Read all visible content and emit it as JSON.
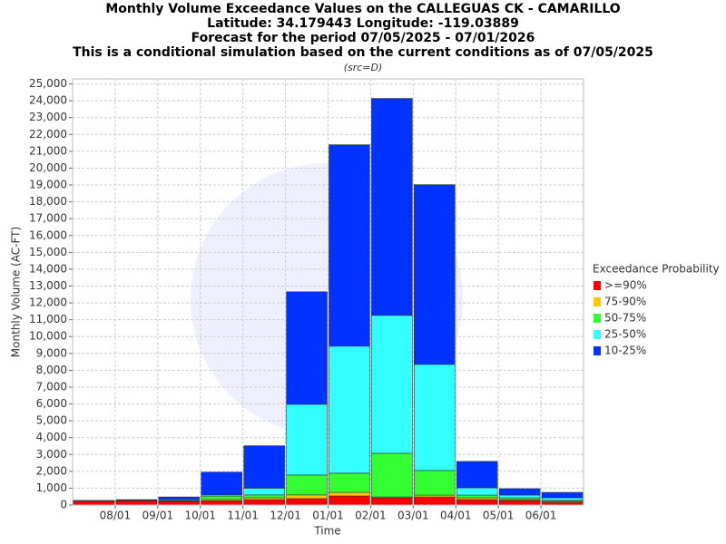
{
  "chart_data": {
    "type": "stacked_bar",
    "title": [
      "Monthly Volume Exceedance Values on the CALLEGUAS CK - CAMARILLO",
      "Latitude: 34.179443 Longitude: -119.03889",
      "Forecast for the period 07/05/2025 - 07/01/2026",
      "This is a conditional simulation based on the current conditions as of 07/05/2025"
    ],
    "subtitle": "(src=D)",
    "x_label": "Time",
    "y_label": "Monthly Volume (AC-FT)",
    "legend_title": "Exceedance Probability",
    "categories": [
      null,
      "08/01",
      "09/01",
      "10/01",
      "11/01",
      "12/01",
      "01/01",
      "02/01",
      "03/01",
      "04/01",
      "05/01",
      "06/01"
    ],
    "series": [
      {
        "name": ">=90%",
        "color": "#ff0000",
        "values": [
          230,
          250,
          220,
          250,
          320,
          380,
          540,
          430,
          480,
          320,
          270,
          160
        ]
      },
      {
        "name": "75-90%",
        "color": "#ffc800",
        "values": [
          10,
          10,
          20,
          80,
          110,
          220,
          210,
          50,
          110,
          110,
          50,
          60
        ]
      },
      {
        "name": "50-75%",
        "color": "#33ff33",
        "values": [
          10,
          10,
          30,
          200,
          170,
          1180,
          1140,
          2590,
          1460,
          160,
          110,
          50
        ]
      },
      {
        "name": "25-50%",
        "color": "#33ffff",
        "values": [
          10,
          20,
          60,
          70,
          400,
          4200,
          7540,
          8190,
          6300,
          430,
          160,
          160
        ]
      },
      {
        "name": "10-25%",
        "color": "#0033ff",
        "values": [
          10,
          30,
          150,
          1350,
          2520,
          6680,
          11960,
          12880,
          10670,
          1570,
          380,
          320
        ]
      }
    ],
    "ylim": [
      0,
      25300
    ],
    "yticks": [
      0,
      {
        "value": 1000,
        "label": "1,000"
      },
      {
        "value": 2000,
        "label": "2,000"
      },
      {
        "value": 3000,
        "label": "3,000"
      },
      {
        "value": 4000,
        "label": "4,000"
      },
      {
        "value": 5000,
        "label": "5,000"
      },
      {
        "value": 6000,
        "label": "6,000"
      },
      {
        "value": 7000,
        "label": "7,000"
      },
      {
        "value": 8000,
        "label": "8,000"
      },
      {
        "value": 9000,
        "label": "9,000"
      },
      {
        "value": 10000,
        "label": "10,000"
      },
      {
        "value": 11000,
        "label": "11,000"
      },
      {
        "value": 12000,
        "label": "12,000"
      },
      {
        "value": 13000,
        "label": "13,000"
      },
      {
        "value": 14000,
        "label": "14,000"
      },
      {
        "value": 15000,
        "label": "15,000"
      },
      {
        "value": 16000,
        "label": "16,000"
      },
      {
        "value": 17000,
        "label": "17,000"
      },
      {
        "value": 18000,
        "label": "18,000"
      },
      {
        "value": 19000,
        "label": "19,000"
      },
      {
        "value": 20000,
        "label": "20,000"
      },
      {
        "value": 21000,
        "label": "21,000"
      },
      {
        "value": 22000,
        "label": "22,000"
      },
      {
        "value": 23000,
        "label": "23,000"
      },
      {
        "value": 24000,
        "label": "24,000"
      },
      {
        "value": 25000,
        "label": "25,000"
      }
    ],
    "grid": true,
    "legend_position": "right"
  }
}
